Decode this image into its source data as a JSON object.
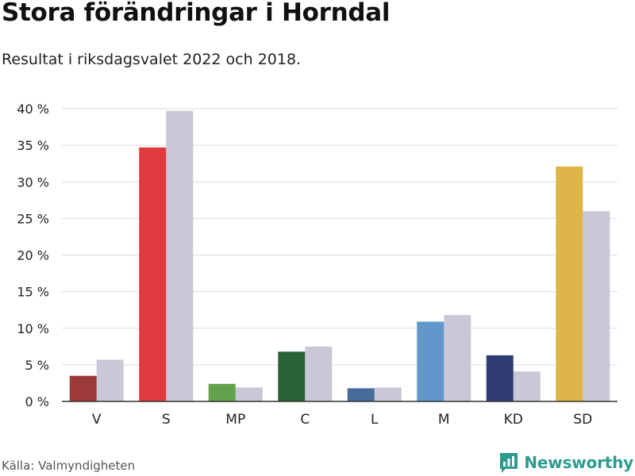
{
  "title": "Stora förändringar i Horndal",
  "subtitle": "Resultat i riksdagsvalet 2022 och 2018.",
  "source": "Källa: Valmyndigheten",
  "brand": {
    "name": "Newsworthy",
    "icon": "bar-chart-logo-icon",
    "color": "#2a9d8f"
  },
  "chart_data": {
    "type": "bar",
    "categories": [
      "V",
      "S",
      "MP",
      "C",
      "L",
      "M",
      "KD",
      "SD"
    ],
    "series": [
      {
        "name": "2022",
        "values": [
          3.5,
          34.7,
          2.4,
          6.8,
          1.8,
          10.9,
          6.3,
          32.1
        ],
        "colors": [
          "#9b3a38",
          "#e0393e",
          "#63a24d",
          "#2a6235",
          "#476c9b",
          "#6298c9",
          "#2f3c72",
          "#ddb548"
        ]
      },
      {
        "name": "2018",
        "values": [
          5.7,
          39.7,
          1.9,
          7.5,
          1.9,
          11.8,
          4.1,
          26.0
        ],
        "color": "#c8c8d6"
      }
    ],
    "ylim": [
      0,
      40
    ],
    "yticks": [
      0,
      5,
      10,
      15,
      20,
      25,
      30,
      35,
      40
    ],
    "ytick_labels": [
      "0 %",
      "5 %",
      "10 %",
      "15 %",
      "20 %",
      "25 %",
      "30 %",
      "35 %",
      "40 %"
    ],
    "grid_color": "#dddddd",
    "axis_color": "#333333",
    "xlabel": "",
    "ylabel": ""
  }
}
